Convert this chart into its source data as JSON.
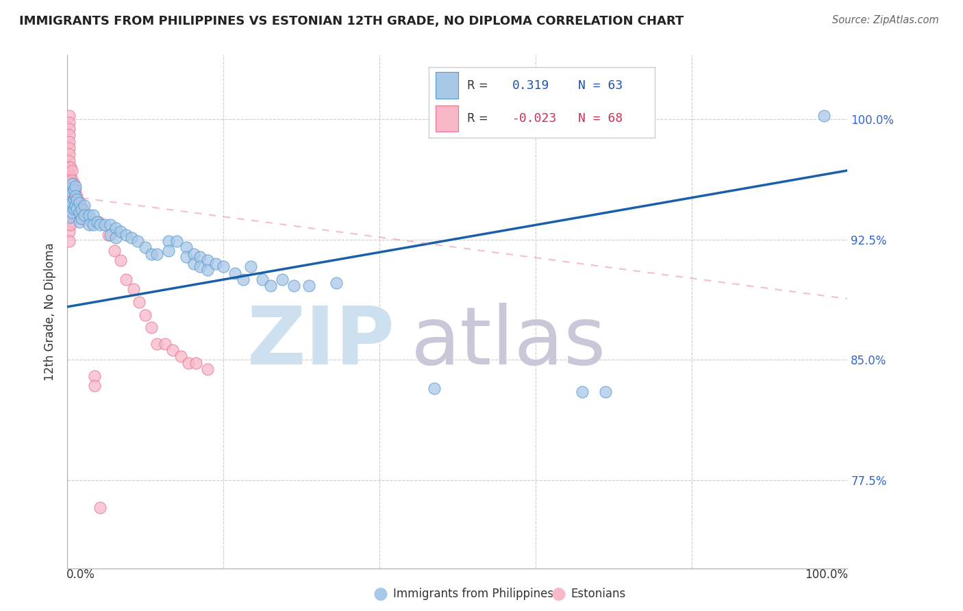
{
  "title": "IMMIGRANTS FROM PHILIPPINES VS ESTONIAN 12TH GRADE, NO DIPLOMA CORRELATION CHART",
  "source": "Source: ZipAtlas.com",
  "ylabel": "12th Grade, No Diploma",
  "ytick_labels": [
    "100.0%",
    "92.5%",
    "85.0%",
    "77.5%"
  ],
  "ytick_values": [
    1.0,
    0.925,
    0.85,
    0.775
  ],
  "xlim": [
    0.0,
    1.0
  ],
  "ylim": [
    0.72,
    1.04
  ],
  "blue_color": "#a8c8e8",
  "blue_edge_color": "#5599cc",
  "blue_line_color": "#1a5faa",
  "pink_color": "#f8b8c8",
  "pink_edge_color": "#e87090",
  "pink_line_color": "#e87090",
  "blue_line_x": [
    0.0,
    1.0
  ],
  "blue_line_y": [
    0.883,
    0.968
  ],
  "pink_line_x": [
    0.0,
    1.0
  ],
  "pink_line_y": [
    0.952,
    0.888
  ],
  "blue_scatter": [
    [
      0.003,
      0.957
    ],
    [
      0.003,
      0.951
    ],
    [
      0.003,
      0.945
    ],
    [
      0.003,
      0.939
    ],
    [
      0.006,
      0.96
    ],
    [
      0.006,
      0.954
    ],
    [
      0.006,
      0.948
    ],
    [
      0.006,
      0.942
    ],
    [
      0.008,
      0.956
    ],
    [
      0.008,
      0.95
    ],
    [
      0.008,
      0.944
    ],
    [
      0.01,
      0.958
    ],
    [
      0.01,
      0.952
    ],
    [
      0.01,
      0.946
    ],
    [
      0.012,
      0.95
    ],
    [
      0.012,
      0.944
    ],
    [
      0.015,
      0.948
    ],
    [
      0.015,
      0.942
    ],
    [
      0.015,
      0.936
    ],
    [
      0.018,
      0.944
    ],
    [
      0.018,
      0.938
    ],
    [
      0.022,
      0.946
    ],
    [
      0.022,
      0.94
    ],
    [
      0.028,
      0.94
    ],
    [
      0.028,
      0.934
    ],
    [
      0.033,
      0.94
    ],
    [
      0.033,
      0.934
    ],
    [
      0.038,
      0.936
    ],
    [
      0.042,
      0.934
    ],
    [
      0.048,
      0.934
    ],
    [
      0.055,
      0.934
    ],
    [
      0.055,
      0.928
    ],
    [
      0.062,
      0.932
    ],
    [
      0.062,
      0.926
    ],
    [
      0.068,
      0.93
    ],
    [
      0.075,
      0.928
    ],
    [
      0.082,
      0.926
    ],
    [
      0.09,
      0.924
    ],
    [
      0.1,
      0.92
    ],
    [
      0.108,
      0.916
    ],
    [
      0.115,
      0.916
    ],
    [
      0.13,
      0.924
    ],
    [
      0.13,
      0.918
    ],
    [
      0.14,
      0.924
    ],
    [
      0.152,
      0.92
    ],
    [
      0.152,
      0.914
    ],
    [
      0.162,
      0.916
    ],
    [
      0.162,
      0.91
    ],
    [
      0.17,
      0.914
    ],
    [
      0.17,
      0.908
    ],
    [
      0.18,
      0.912
    ],
    [
      0.18,
      0.906
    ],
    [
      0.19,
      0.91
    ],
    [
      0.2,
      0.908
    ],
    [
      0.215,
      0.904
    ],
    [
      0.225,
      0.9
    ],
    [
      0.235,
      0.908
    ],
    [
      0.25,
      0.9
    ],
    [
      0.26,
      0.896
    ],
    [
      0.275,
      0.9
    ],
    [
      0.29,
      0.896
    ],
    [
      0.31,
      0.896
    ],
    [
      0.345,
      0.898
    ],
    [
      0.47,
      0.832
    ],
    [
      0.66,
      0.83
    ],
    [
      0.69,
      0.83
    ],
    [
      0.97,
      1.002
    ]
  ],
  "pink_scatter": [
    [
      0.002,
      1.002
    ],
    [
      0.002,
      0.998
    ],
    [
      0.002,
      0.994
    ],
    [
      0.002,
      0.99
    ],
    [
      0.002,
      0.986
    ],
    [
      0.002,
      0.982
    ],
    [
      0.002,
      0.978
    ],
    [
      0.002,
      0.974
    ],
    [
      0.002,
      0.97
    ],
    [
      0.002,
      0.966
    ],
    [
      0.002,
      0.962
    ],
    [
      0.002,
      0.958
    ],
    [
      0.002,
      0.954
    ],
    [
      0.002,
      0.95
    ],
    [
      0.002,
      0.946
    ],
    [
      0.002,
      0.942
    ],
    [
      0.002,
      0.938
    ],
    [
      0.002,
      0.934
    ],
    [
      0.002,
      0.93
    ],
    [
      0.002,
      0.924
    ],
    [
      0.004,
      0.97
    ],
    [
      0.004,
      0.964
    ],
    [
      0.004,
      0.958
    ],
    [
      0.004,
      0.952
    ],
    [
      0.004,
      0.946
    ],
    [
      0.004,
      0.94
    ],
    [
      0.004,
      0.934
    ],
    [
      0.006,
      0.968
    ],
    [
      0.006,
      0.962
    ],
    [
      0.006,
      0.956
    ],
    [
      0.008,
      0.96
    ],
    [
      0.008,
      0.954
    ],
    [
      0.01,
      0.956
    ],
    [
      0.012,
      0.952
    ],
    [
      0.012,
      0.946
    ],
    [
      0.015,
      0.948
    ],
    [
      0.018,
      0.944
    ],
    [
      0.018,
      0.938
    ],
    [
      0.02,
      0.944
    ],
    [
      0.025,
      0.94
    ],
    [
      0.03,
      0.936
    ],
    [
      0.04,
      0.936
    ],
    [
      0.052,
      0.928
    ],
    [
      0.06,
      0.918
    ],
    [
      0.068,
      0.912
    ],
    [
      0.075,
      0.9
    ],
    [
      0.085,
      0.894
    ],
    [
      0.092,
      0.886
    ],
    [
      0.1,
      0.878
    ],
    [
      0.108,
      0.87
    ],
    [
      0.115,
      0.86
    ],
    [
      0.125,
      0.86
    ],
    [
      0.135,
      0.856
    ],
    [
      0.145,
      0.852
    ],
    [
      0.155,
      0.848
    ],
    [
      0.165,
      0.848
    ],
    [
      0.18,
      0.844
    ],
    [
      0.035,
      0.84
    ],
    [
      0.035,
      0.834
    ],
    [
      0.042,
      0.758
    ]
  ],
  "legend_label_blue": "Immigrants from Philippines",
  "legend_label_pink": "Estonians",
  "watermark_zip_color": "#cce0f0",
  "watermark_atlas_color": "#c8c8d8"
}
